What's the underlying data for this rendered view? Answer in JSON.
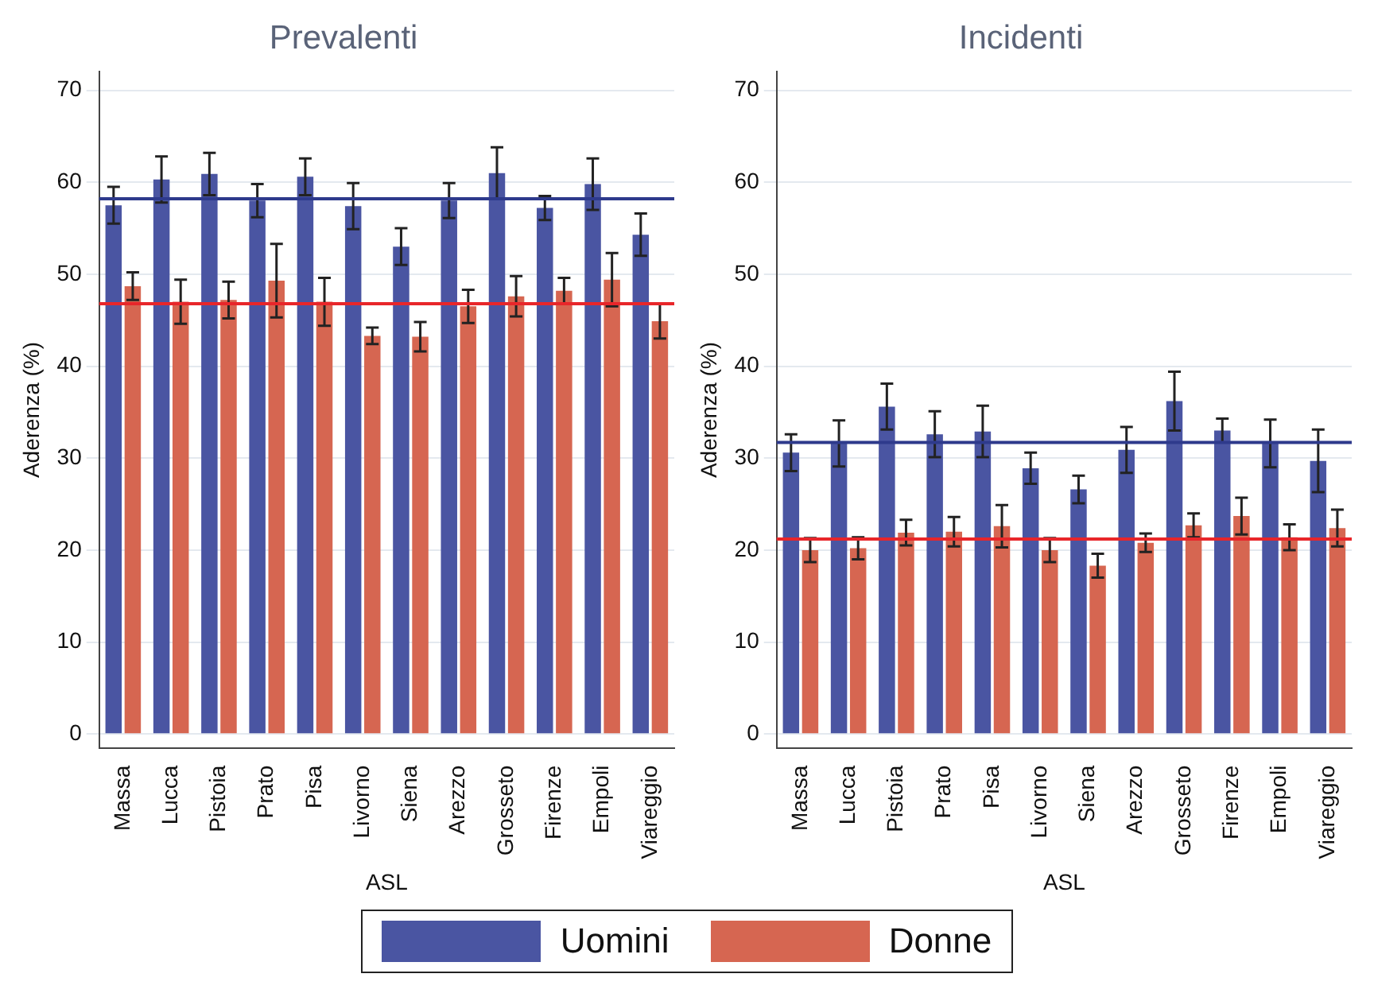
{
  "chart_data": [
    {
      "type": "bar",
      "title": "Prevalenti",
      "xlabel": "ASL",
      "ylabel": "Aderenza (%)",
      "categories": [
        "Massa",
        "Lucca",
        "Pistoia",
        "Prato",
        "Pisa",
        "Livorno",
        "Siena",
        "Arezzo",
        "Grosseto",
        "Firenze",
        "Empoli",
        "Viareggio"
      ],
      "series": [
        {
          "name": "Uomini",
          "color": "#4a55a2",
          "values": [
            57.5,
            60.3,
            60.9,
            58,
            60.6,
            57.4,
            53,
            58,
            61,
            57.2,
            59.8,
            54.3
          ],
          "errors": [
            2,
            2.5,
            2.3,
            1.8,
            2,
            2.5,
            2,
            1.9,
            2.8,
            1.3,
            2.8,
            2.3
          ]
        },
        {
          "name": "Donne",
          "color": "#d66651",
          "values": [
            48.7,
            47,
            47.2,
            49.3,
            47,
            43.3,
            43.2,
            46.5,
            47.6,
            48.2,
            49.4,
            44.9
          ],
          "errors": [
            1.5,
            2.4,
            2,
            4,
            2.6,
            0.9,
            1.6,
            1.8,
            2.2,
            1.4,
            2.9,
            1.9
          ]
        }
      ],
      "ref_lines": [
        {
          "axis": "y",
          "value": 58.2,
          "color": "#2e3a8c"
        },
        {
          "axis": "y",
          "value": 46.8,
          "color": "#e8262a"
        }
      ],
      "ylim": [
        -1.5,
        72
      ],
      "yticks": [
        0,
        10,
        20,
        30,
        40,
        50,
        60,
        70
      ],
      "grid": "y",
      "legend": "bottom"
    },
    {
      "type": "bar",
      "title": "Incidenti",
      "xlabel": "ASL",
      "ylabel": "Aderenza (%)",
      "categories": [
        "Massa",
        "Lucca",
        "Pistoia",
        "Prato",
        "Pisa",
        "Livorno",
        "Siena",
        "Arezzo",
        "Grosseto",
        "Firenze",
        "Empoli",
        "Viareggio"
      ],
      "series": [
        {
          "name": "Uomini",
          "color": "#4a55a2",
          "values": [
            30.6,
            31.6,
            35.6,
            32.6,
            32.9,
            28.9,
            26.6,
            30.9,
            36.2,
            33,
            31.6,
            29.7
          ],
          "errors": [
            2,
            2.5,
            2.5,
            2.5,
            2.8,
            1.7,
            1.5,
            2.5,
            3.2,
            1.3,
            2.6,
            3.4
          ]
        },
        {
          "name": "Donne",
          "color": "#d66651",
          "values": [
            20,
            20.2,
            21.9,
            22,
            22.6,
            20,
            18.3,
            20.8,
            22.7,
            23.7,
            21.4,
            22.4
          ],
          "errors": [
            1.3,
            1.2,
            1.4,
            1.6,
            2.3,
            1.3,
            1.3,
            1,
            1.3,
            2,
            1.4,
            2
          ]
        }
      ],
      "ref_lines": [
        {
          "axis": "y",
          "value": 31.7,
          "color": "#2e3a8c"
        },
        {
          "axis": "y",
          "value": 21.2,
          "color": "#e8262a"
        }
      ],
      "ylim": [
        -1.5,
        72
      ],
      "yticks": [
        0,
        10,
        20,
        30,
        40,
        50,
        60,
        70
      ],
      "grid": "y",
      "legend": "bottom"
    }
  ]
}
